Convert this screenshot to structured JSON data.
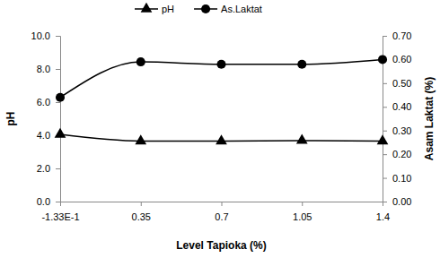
{
  "chart_data": {
    "type": "line",
    "categories": [
      "-1.33E-1",
      "0.35",
      "0.7",
      "1.05",
      "1.4"
    ],
    "xlabel": "Level Tapioka (%)",
    "ylabel": "pH",
    "y2label": "Asam Laktat (%)",
    "ylim": [
      0,
      10
    ],
    "yticks": [
      {
        "value": 0,
        "label": "0.0"
      },
      {
        "value": 2,
        "label": "2.0"
      },
      {
        "value": 4,
        "label": "4.0"
      },
      {
        "value": 6,
        "label": "6.0"
      },
      {
        "value": 8,
        "label": "8.0"
      },
      {
        "value": 10,
        "label": "10.0"
      }
    ],
    "y2lim": [
      0,
      0.7
    ],
    "y2ticks": [
      {
        "value": 0,
        "label": "0.00"
      },
      {
        "value": 0.1,
        "label": "0.10"
      },
      {
        "value": 0.2,
        "label": "0.20"
      },
      {
        "value": 0.3,
        "label": "0.30"
      },
      {
        "value": 0.4,
        "label": "0.40"
      },
      {
        "value": 0.5,
        "label": "0.50"
      },
      {
        "value": 0.6,
        "label": "0.60"
      },
      {
        "value": 0.7,
        "label": "0.70"
      }
    ],
    "legend": "top",
    "series": [
      {
        "name": "pH",
        "color": "#000000",
        "marker": "triangle",
        "values": [
          4.05,
          3.65,
          3.65,
          3.68,
          3.65
        ]
      },
      {
        "name": "As.Laktat",
        "color": "#000000",
        "marker": "circle",
        "axis": "y2",
        "values": [
          0.44,
          0.59,
          0.58,
          0.58,
          0.6
        ]
      }
    ]
  }
}
